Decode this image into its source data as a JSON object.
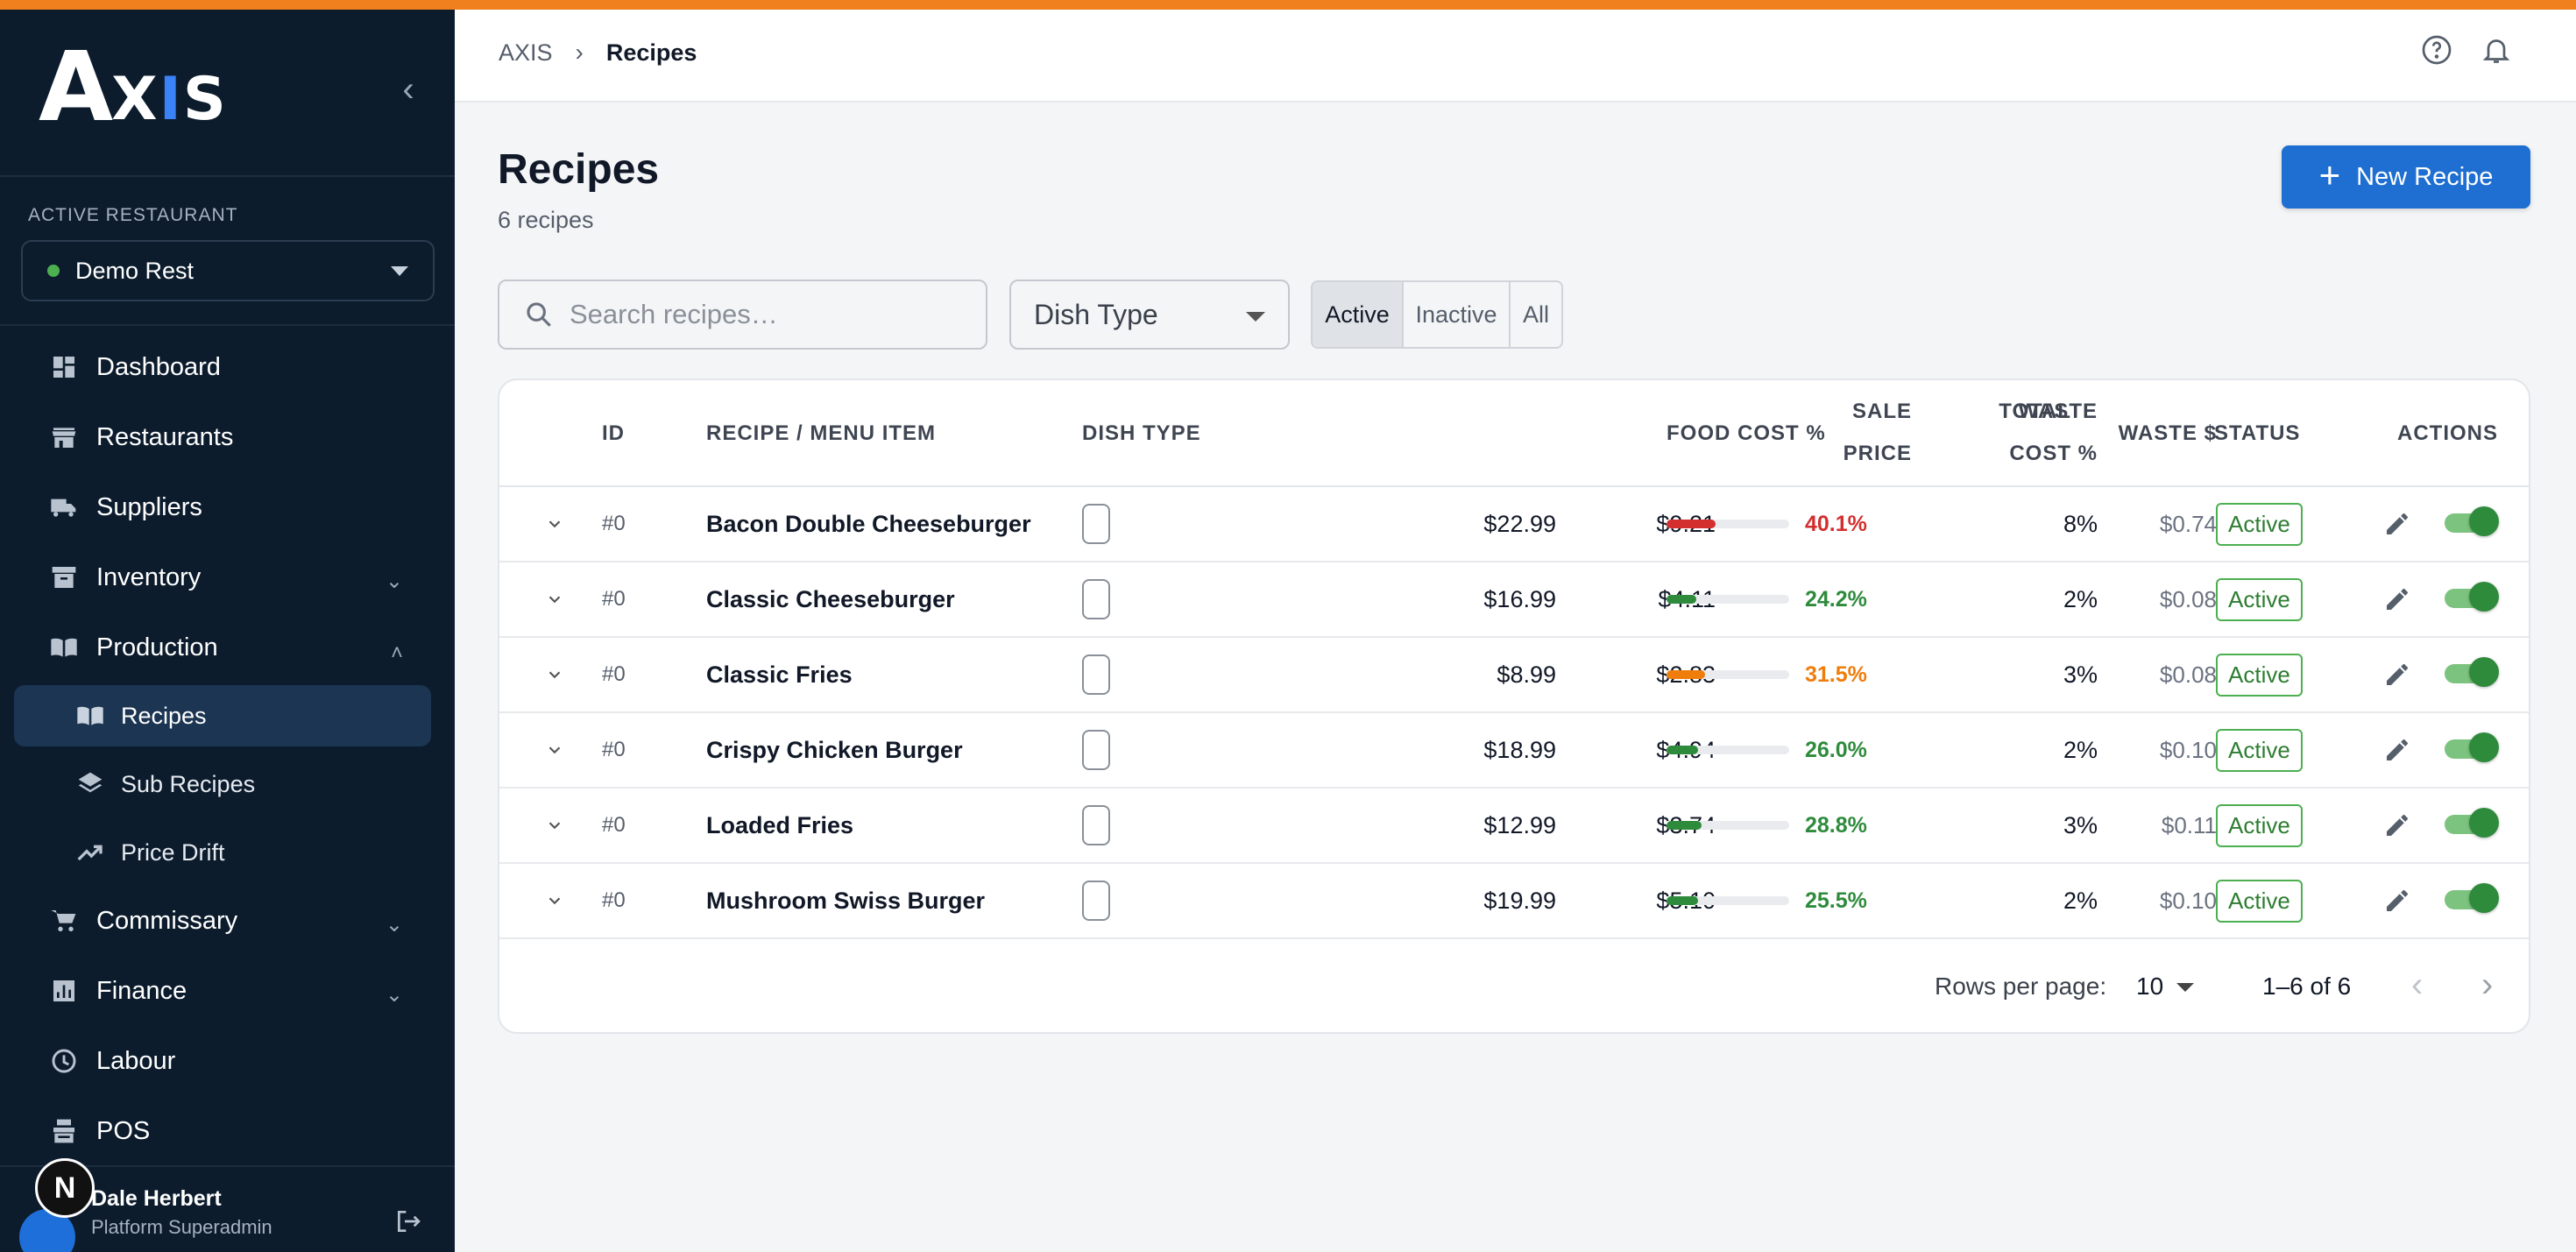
{
  "brand": {
    "logo_a": "A",
    "logo_x": "X",
    "logo_i": "I",
    "logo_s": "S"
  },
  "sidebar": {
    "active_restaurant_label": "ACTIVE RESTAURANT",
    "restaurant": "Demo Rest",
    "nav": [
      {
        "label": "Dashboard",
        "icon": "dashboard-icon"
      },
      {
        "label": "Restaurants",
        "icon": "storefront-icon"
      },
      {
        "label": "Suppliers",
        "icon": "truck-icon"
      },
      {
        "label": "Inventory",
        "icon": "archive-icon"
      },
      {
        "label": "Production",
        "icon": "book-icon"
      },
      {
        "label": "Commissary",
        "icon": "cart-icon"
      },
      {
        "label": "Finance",
        "icon": "chart-icon"
      },
      {
        "label": "Labour",
        "icon": "clock-icon"
      },
      {
        "label": "POS",
        "icon": "register-icon"
      }
    ],
    "sub": [
      {
        "label": "Recipes",
        "icon": "book-icon"
      },
      {
        "label": "Sub Recipes",
        "icon": "layers-icon"
      },
      {
        "label": "Price Drift",
        "icon": "trending-up-icon"
      }
    ],
    "user": {
      "name": "Dale Herbert",
      "role": "Platform Superadmin",
      "badge": "N"
    }
  },
  "header": {
    "crumb_root": "AXIS",
    "crumb_current": "Recipes"
  },
  "page": {
    "title": "Recipes",
    "subtitle": "6 recipes",
    "new_button": "New Recipe"
  },
  "filters": {
    "search_placeholder": "Search recipes…",
    "dish_type": "Dish Type",
    "segments": [
      "Active",
      "Inactive",
      "All"
    ],
    "selected_segment": "Active"
  },
  "table": {
    "headers": {
      "id": "ID",
      "name": "RECIPE / MENU ITEM",
      "dish_type": "DISH TYPE",
      "sale_1": "SALE",
      "sale_2": "PRICE",
      "total_1": "TOTAL",
      "total_2": "COST",
      "food_cost": "FOOD COST %",
      "waste_1": "WASTE",
      "waste_2": "%",
      "waste_dollar": "WASTE $",
      "status": "STATUS",
      "actions": "ACTIONS"
    },
    "rows": [
      {
        "id": "#0",
        "name": "Bacon Double Cheeseburger",
        "sale": "$22.99",
        "total": "$9.21",
        "food_cost": "40.1%",
        "food_cost_value": 0.401,
        "color": "#d32f2f",
        "waste_pct": "8%",
        "waste_dollar": "$0.74",
        "status": "Active",
        "enabled": true
      },
      {
        "id": "#0",
        "name": "Classic Cheeseburger",
        "sale": "$16.99",
        "total": "$4.11",
        "food_cost": "24.2%",
        "food_cost_value": 0.242,
        "color": "#2e8b3c",
        "waste_pct": "2%",
        "waste_dollar": "$0.08",
        "status": "Active",
        "enabled": true
      },
      {
        "id": "#0",
        "name": "Classic Fries",
        "sale": "$8.99",
        "total": "$2.83",
        "food_cost": "31.5%",
        "food_cost_value": 0.315,
        "color": "#ef7d0b",
        "waste_pct": "3%",
        "waste_dollar": "$0.08",
        "status": "Active",
        "enabled": true
      },
      {
        "id": "#0",
        "name": "Crispy Chicken Burger",
        "sale": "$18.99",
        "total": "$4.94",
        "food_cost": "26.0%",
        "food_cost_value": 0.26,
        "color": "#2e8b3c",
        "waste_pct": "2%",
        "waste_dollar": "$0.10",
        "status": "Active",
        "enabled": true
      },
      {
        "id": "#0",
        "name": "Loaded Fries",
        "sale": "$12.99",
        "total": "$3.74",
        "food_cost": "28.8%",
        "food_cost_value": 0.288,
        "color": "#2e8b3c",
        "waste_pct": "3%",
        "waste_dollar": "$0.11",
        "status": "Active",
        "enabled": true
      },
      {
        "id": "#0",
        "name": "Mushroom Swiss Burger",
        "sale": "$19.99",
        "total": "$5.10",
        "food_cost": "25.5%",
        "food_cost_value": 0.255,
        "color": "#2e8b3c",
        "waste_pct": "2%",
        "waste_dollar": "$0.10",
        "status": "Active",
        "enabled": true
      }
    ]
  },
  "pagination": {
    "rows_label": "Rows per page:",
    "rows_value": "10",
    "range": "1–6 of 6"
  }
}
